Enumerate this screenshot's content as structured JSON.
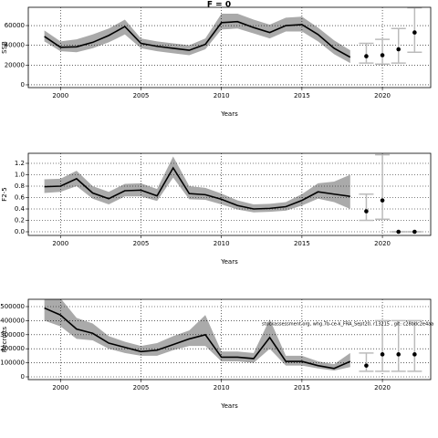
{
  "chart_data": [
    {
      "type": "line",
      "title": "F = 0",
      "y_label": "SSB",
      "x_label": "Years",
      "xlim": [
        1998,
        2023
      ],
      "xticks": [
        2000,
        2005,
        2010,
        2015,
        2020
      ],
      "ylim": [
        -2800,
        78500
      ],
      "yticks": [
        0,
        20000,
        40000,
        60000
      ],
      "grid": true,
      "color": "#000000",
      "band_color": "#aaaaaa",
      "x": [
        1999,
        2000,
        2001,
        2002,
        2003,
        2004,
        2005,
        2006,
        2007,
        2008,
        2009,
        2010,
        2011,
        2012,
        2013,
        2014,
        2015,
        2016,
        2017,
        2018
      ],
      "values": [
        49000,
        38000,
        38500,
        43000,
        50000,
        59000,
        42000,
        39000,
        37000,
        35000,
        41000,
        63000,
        64000,
        58000,
        53000,
        60000,
        61000,
        51000,
        37000,
        28000
      ],
      "lower": [
        44000,
        34000,
        33000,
        37000,
        43000,
        51000,
        37000,
        34000,
        32000,
        30000,
        36000,
        56000,
        57000,
        52000,
        47000,
        54000,
        54000,
        44000,
        31000,
        22000
      ],
      "upper": [
        55000,
        44000,
        46000,
        51000,
        57000,
        66000,
        47000,
        44000,
        42000,
        40000,
        47000,
        72000,
        72000,
        66000,
        61000,
        68000,
        69000,
        58000,
        45000,
        35000
      ],
      "projection": {
        "x": [
          2019,
          2020,
          2021,
          2022
        ],
        "values": [
          29000,
          30000,
          36000,
          53000
        ],
        "lower": [
          22000,
          21000,
          22000,
          33000
        ],
        "upper": [
          42000,
          46000,
          57000,
          78000
        ]
      }
    },
    {
      "type": "line",
      "y_label": "F2-5",
      "x_label": "Years",
      "xlim": [
        1998,
        2023
      ],
      "xticks": [
        2000,
        2005,
        2010,
        2015,
        2020
      ],
      "ylim": [
        -0.064,
        1.376
      ],
      "yticks": [
        {
          "value": 0,
          "label": "0.0"
        },
        0.2,
        0.4,
        0.6,
        0.8,
        {
          "value": 1,
          "label": "1.0"
        },
        1.2
      ],
      "grid": true,
      "color": "#000000",
      "band_color": "#aaaaaa",
      "x": [
        1999,
        2000,
        2001,
        2002,
        2003,
        2004,
        2005,
        2006,
        2007,
        2008,
        2009,
        2010,
        2011,
        2012,
        2013,
        2014,
        2015,
        2016,
        2017,
        2018
      ],
      "values": [
        0.79,
        0.8,
        0.93,
        0.68,
        0.58,
        0.72,
        0.73,
        0.63,
        1.12,
        0.67,
        0.65,
        0.57,
        0.46,
        0.4,
        0.41,
        0.44,
        0.55,
        0.7,
        0.66,
        0.62
      ],
      "lower": [
        0.68,
        0.7,
        0.8,
        0.58,
        0.48,
        0.62,
        0.62,
        0.54,
        0.95,
        0.57,
        0.56,
        0.48,
        0.39,
        0.34,
        0.35,
        0.37,
        0.46,
        0.58,
        0.52,
        0.4
      ],
      "upper": [
        0.92,
        0.93,
        1.07,
        0.8,
        0.7,
        0.84,
        0.85,
        0.75,
        1.32,
        0.8,
        0.77,
        0.67,
        0.55,
        0.48,
        0.49,
        0.52,
        0.66,
        0.85,
        0.88,
        1.0
      ],
      "projection": {
        "x": [
          2019,
          2020,
          2021,
          2022
        ],
        "values": [
          0.36,
          0.55,
          0,
          0
        ],
        "lower": [
          0.2,
          0.22,
          0,
          0
        ],
        "upper": [
          0.66,
          1.35,
          0,
          0
        ]
      }
    },
    {
      "type": "line",
      "y_label": "Recruits",
      "x_label": "Years",
      "annotation": "stockassessment.org, whg.7b-ce-k_FRA_Sept20, r13215 , git: c28bdc2e4aa",
      "xlim": [
        1998,
        2023
      ],
      "xticks": [
        2000,
        2005,
        2010,
        2015,
        2020
      ],
      "ylim": [
        -19500,
        552000
      ],
      "yticks": [
        0,
        100000,
        200000,
        300000,
        400000,
        500000
      ],
      "grid": true,
      "color": "#000000",
      "band_color": "#aaaaaa",
      "x": [
        1999,
        2000,
        2001,
        2002,
        2003,
        2004,
        2005,
        2006,
        2007,
        2008,
        2009,
        2010,
        2011,
        2012,
        2013,
        2014,
        2015,
        2016,
        2017,
        2018
      ],
      "values": [
        490000,
        440000,
        340000,
        310000,
        240000,
        210000,
        180000,
        190000,
        230000,
        270000,
        300000,
        140000,
        140000,
        130000,
        280000,
        110000,
        110000,
        80000,
        60000,
        110000
      ],
      "lower": [
        400000,
        360000,
        270000,
        260000,
        200000,
        170000,
        150000,
        150000,
        190000,
        220000,
        220000,
        110000,
        110000,
        100000,
        200000,
        80000,
        80000,
        60000,
        45000,
        70000
      ],
      "upper": [
        580000,
        560000,
        420000,
        380000,
        290000,
        250000,
        220000,
        240000,
        290000,
        330000,
        440000,
        180000,
        180000,
        170000,
        410000,
        150000,
        150000,
        110000,
        90000,
        170000
      ],
      "projection": {
        "x": [
          2019,
          2020,
          2021,
          2022
        ],
        "values": [
          80000,
          160000,
          160000,
          160000
        ],
        "lower": [
          40000,
          40000,
          40000,
          40000
        ],
        "upper": [
          170000,
          400000,
          400000,
          400000
        ]
      }
    }
  ]
}
